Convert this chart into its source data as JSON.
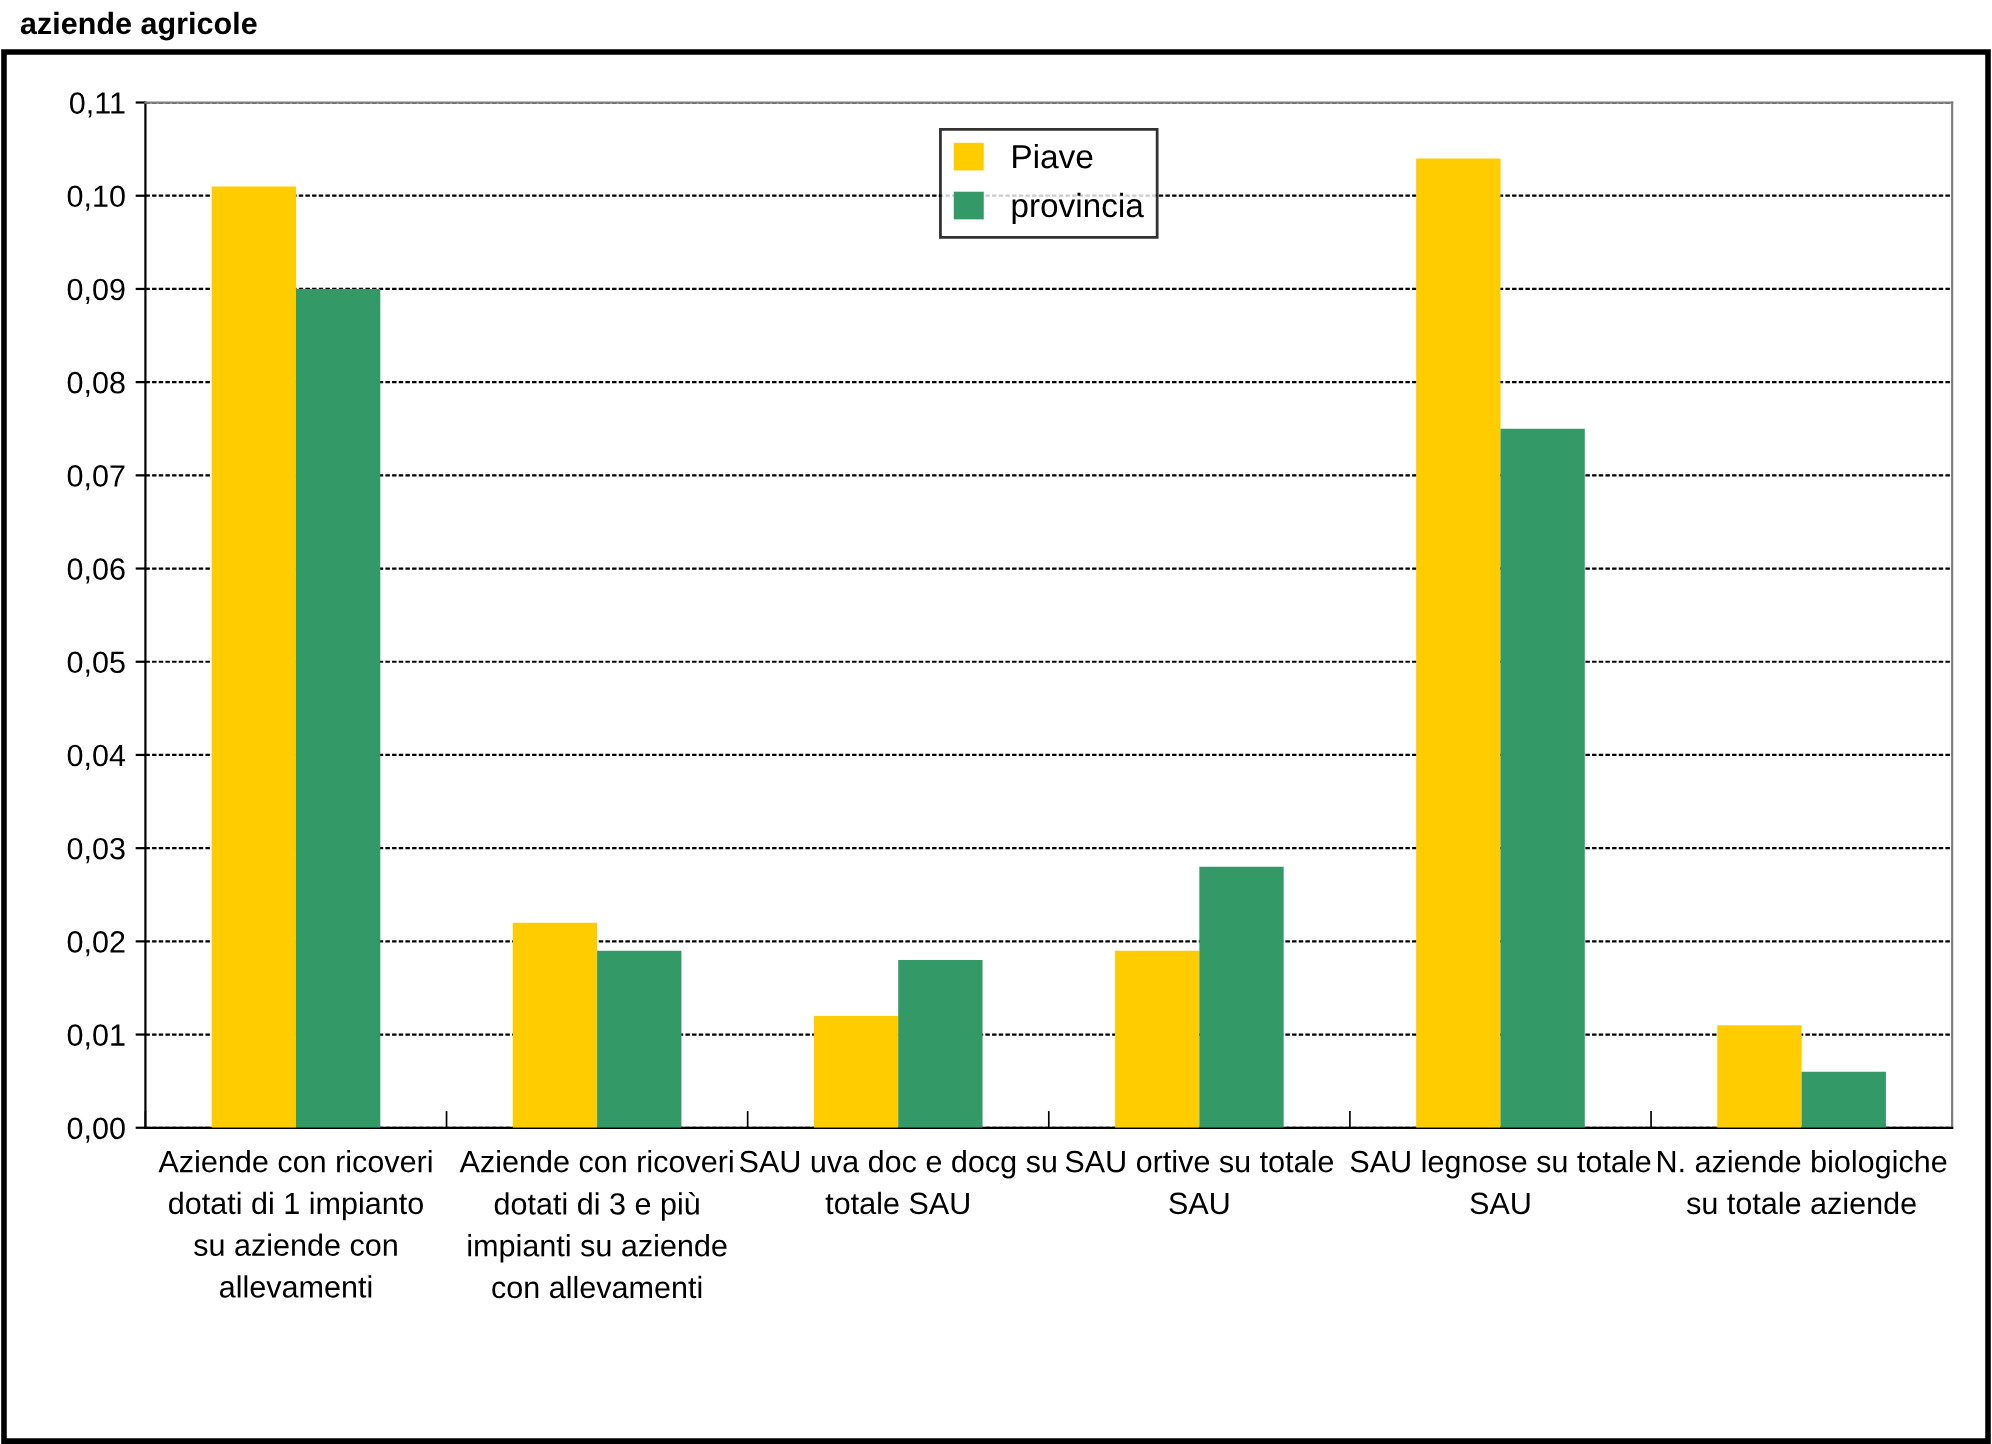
{
  "chart_data": {
    "type": "bar",
    "title": "aziende agricole",
    "categories": [
      "Aziende con ricoveri dotati di 1 impianto su aziende con allevamenti",
      "Aziende con ricoveri dotati di 3 e più impianti su aziende con allevamenti",
      "SAU uva doc e docg su totale SAU",
      "SAU ortive su totale SAU",
      "SAU legnose su totale SAU",
      "N. aziende biologiche su totale aziende"
    ],
    "series": [
      {
        "name": "Piave",
        "color": "#ffcc00",
        "values": [
          0.101,
          0.022,
          0.012,
          0.019,
          0.104,
          0.011
        ]
      },
      {
        "name": "provincia",
        "color": "#339966",
        "values": [
          0.09,
          0.019,
          0.018,
          0.028,
          0.075,
          0.006
        ]
      }
    ],
    "ylim": [
      0,
      0.11
    ],
    "yticks": [
      {
        "value": 0,
        "label": "0,00"
      },
      {
        "value": 0.01,
        "label": "0,01"
      },
      {
        "value": 0.02,
        "label": "0,02"
      },
      {
        "value": 0.03,
        "label": "0,03"
      },
      {
        "value": 0.04,
        "label": "0,04"
      },
      {
        "value": 0.05,
        "label": "0,05"
      },
      {
        "value": 0.06,
        "label": "0,06"
      },
      {
        "value": 0.07,
        "label": "0,07"
      },
      {
        "value": 0.08,
        "label": "0,08"
      },
      {
        "value": 0.09,
        "label": "0,09"
      },
      {
        "value": 0.1,
        "label": "0,10"
      },
      {
        "value": 0.11,
        "label": "0,11"
      }
    ],
    "grid": "y",
    "legend": "top"
  }
}
